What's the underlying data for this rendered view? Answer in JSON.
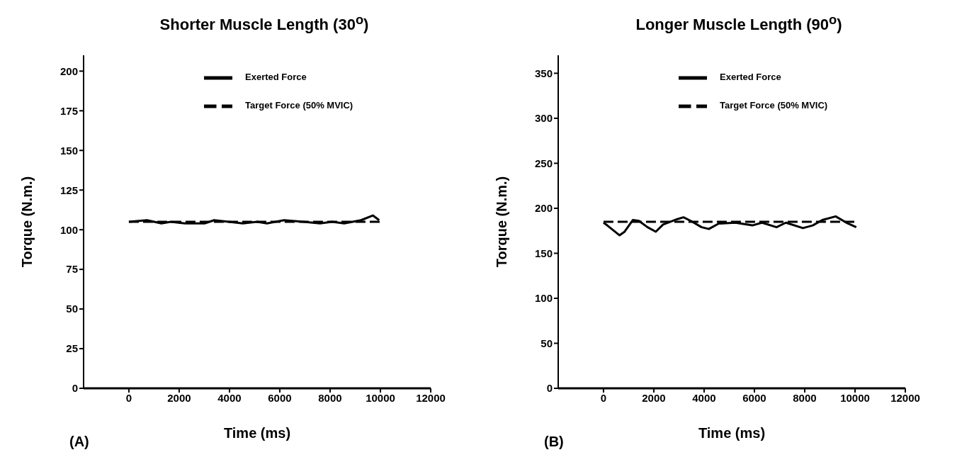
{
  "chart_data": [
    {
      "type": "line",
      "title": "Shorter Muscle Length (30$^{o}$)",
      "xlabel": "Time (ms)",
      "ylabel": "Torque (N.m.)",
      "annotations": [
        "(A)"
      ],
      "xlim": [
        -1800,
        12000
      ],
      "xticks": [
        0,
        2000,
        4000,
        6000,
        8000,
        10000,
        12000
      ],
      "ylim": [
        0,
        210
      ],
      "yticks": [
        0,
        25,
        50,
        75,
        100,
        125,
        150,
        175,
        200
      ],
      "grid": false,
      "legend": "top",
      "marker": "none",
      "series": [
        {
          "name": "Exerted Force",
          "color": "#000000",
          "line_style": "solid",
          "x": [
            0,
            720,
            1290,
            1670,
            2240,
            3010,
            3390,
            3970,
            4530,
            5100,
            5490,
            6170,
            6940,
            7600,
            8080,
            8560,
            9230,
            9700,
            9950
          ],
          "values": [
            105,
            106,
            104,
            105,
            104,
            104,
            106,
            105,
            104,
            105,
            104,
            106,
            105,
            104,
            105,
            104,
            106,
            109,
            106
          ]
        },
        {
          "name": "Target Force (50% MVIC)",
          "color": "#000000",
          "line_style": "dashed",
          "x": [
            0,
            10000
          ],
          "values": [
            105,
            105
          ]
        }
      ]
    },
    {
      "type": "line",
      "title": "Longer Muscle Length (90$^{o}$)",
      "xlabel": "Time (ms)",
      "ylabel": "Torque (N.m.)",
      "annotations": [
        "(B)"
      ],
      "xlim": [
        -1800,
        12000
      ],
      "xticks": [
        0,
        2000,
        4000,
        6000,
        8000,
        10000,
        12000
      ],
      "ylim": [
        0,
        370
      ],
      "yticks": [
        0,
        50,
        100,
        150,
        200,
        250,
        300,
        350
      ],
      "grid": false,
      "legend": "top",
      "marker": "none",
      "series": [
        {
          "name": "Exerted Force",
          "color": "#000000",
          "line_style": "solid",
          "x": [
            0,
            150,
            640,
            840,
            1170,
            1410,
            1750,
            2080,
            2370,
            2940,
            3180,
            3470,
            3900,
            4190,
            4580,
            5240,
            5920,
            6300,
            6880,
            7250,
            7930,
            8320,
            8700,
            9230,
            9660,
            10050
          ],
          "values": [
            184,
            181,
            170,
            174,
            187,
            186,
            179,
            174,
            182,
            188,
            190,
            186,
            179,
            177,
            183,
            184,
            181,
            184,
            179,
            184,
            178,
            181,
            187,
            191,
            184,
            179
          ]
        },
        {
          "name": "Target Force (50% MVIC)",
          "color": "#000000",
          "line_style": "dashed",
          "x": [
            0,
            10000
          ],
          "values": [
            185,
            185
          ]
        }
      ]
    }
  ]
}
